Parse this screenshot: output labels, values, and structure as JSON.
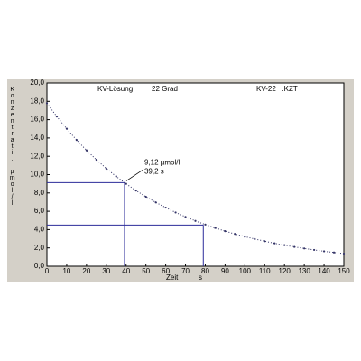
{
  "chart_data": {
    "type": "scatter",
    "header": [
      "KV-Lösung",
      "22 Grad",
      "KV-22   .KZT"
    ],
    "ylabel": "Konzentrati. µmol/l",
    "xlabel": "Zeit",
    "xunit": "s",
    "xlim": [
      0,
      150
    ],
    "ylim": [
      0,
      20
    ],
    "xticks": [
      0,
      10,
      20,
      30,
      40,
      50,
      60,
      70,
      80,
      90,
      100,
      110,
      120,
      130,
      140,
      150
    ],
    "yticks": [
      {
        "value": 0,
        "label": "0,0"
      },
      {
        "value": 2,
        "label": "2,0"
      },
      {
        "value": 4,
        "label": "4,0"
      },
      {
        "value": 6,
        "label": "6,0"
      },
      {
        "value": 8,
        "label": "8,0"
      },
      {
        "value": 10,
        "label": "10,0"
      },
      {
        "value": 12,
        "label": "12,0"
      },
      {
        "value": 14,
        "label": "14,0"
      },
      {
        "value": 16,
        "label": "16,0"
      },
      {
        "value": 18,
        "label": "18,0"
      },
      {
        "value": 20,
        "label": "20,0"
      }
    ],
    "series": [
      {
        "color": "#333366",
        "x": [
          0,
          5,
          10,
          15,
          20,
          25,
          30,
          35,
          40,
          45,
          50,
          55,
          60,
          65,
          70,
          75,
          80,
          85,
          90,
          95,
          100,
          105,
          110,
          115,
          120,
          125,
          130,
          135,
          140,
          145,
          150
        ],
        "values": [
          17.8,
          16.34,
          15.01,
          13.78,
          12.65,
          11.62,
          10.67,
          9.8,
          9.0,
          8.26,
          7.59,
          6.97,
          6.4,
          5.87,
          5.39,
          4.95,
          4.55,
          4.18,
          3.83,
          3.52,
          3.23,
          2.97,
          2.73,
          2.5,
          2.3,
          2.11,
          1.94,
          1.78,
          1.63,
          1.5,
          1.38
        ]
      }
    ],
    "markers": [
      {
        "x": 39.2,
        "y": 9.12,
        "color": "#2b2b9a"
      },
      {
        "x": 79,
        "y": 4.5,
        "color": "#2b2b9a"
      }
    ],
    "annotation": [
      "9,12 µmol/l",
      "39,2 s"
    ]
  }
}
